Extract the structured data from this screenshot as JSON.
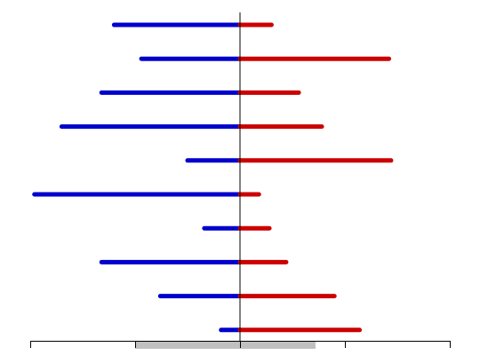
{
  "chart_data": {
    "type": "bar",
    "orientation": "horizontal-diverging",
    "title": "",
    "xlabel": "",
    "ylabel": "",
    "xlim": [
      -1,
      1
    ],
    "x_ticks": [
      -1,
      -0.5,
      0,
      0.5,
      1
    ],
    "highlight_band": [
      -0.5,
      0.36
    ],
    "grid": false,
    "colors": {
      "negative": "#0000cc",
      "positive": "#cc0000",
      "band": "#c0c0c0",
      "axis": "#000000"
    },
    "series": [
      {
        "values": [
          -0.6,
          -0.47,
          -0.66,
          -0.85,
          -0.25,
          -0.98,
          -0.17,
          -0.66,
          -0.38,
          -0.09
        ]
      },
      {
        "values": [
          0.15,
          0.71,
          0.28,
          0.39,
          0.72,
          0.09,
          0.14,
          0.22,
          0.45,
          0.57
        ]
      }
    ]
  }
}
